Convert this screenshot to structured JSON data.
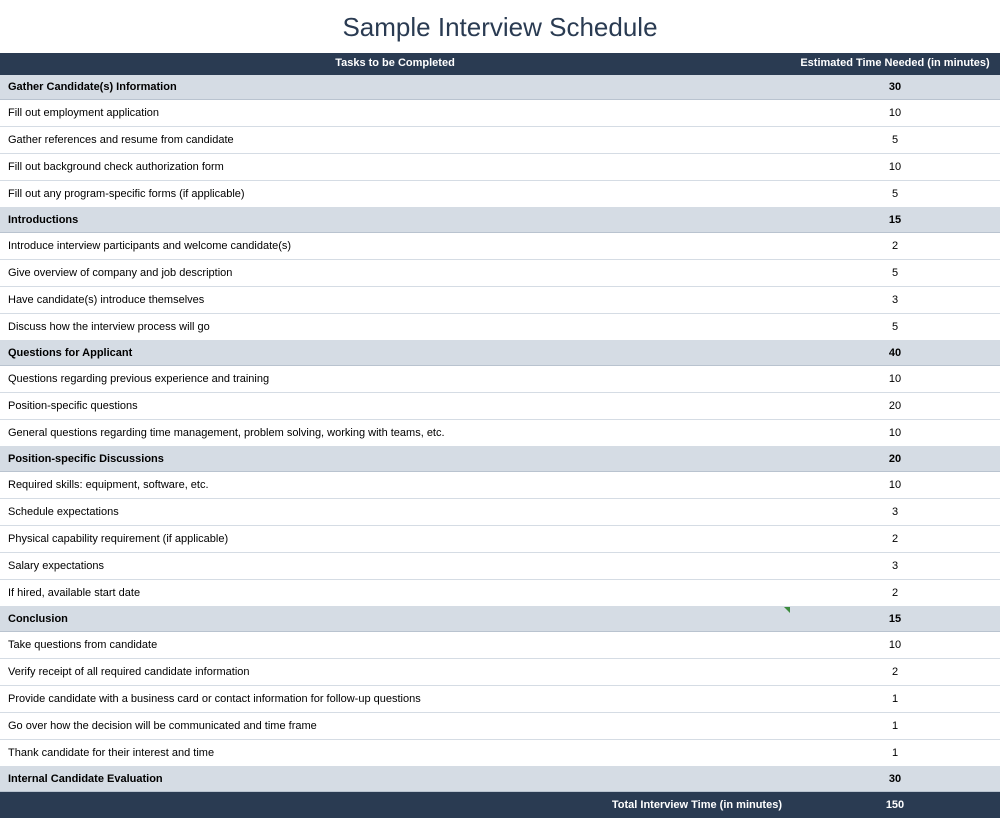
{
  "title": "Sample Interview Schedule",
  "headers": {
    "tasks": "Tasks to be Completed",
    "time": "Estimated Time Needed\n(in minutes)"
  },
  "colors": {
    "header_bg": "#2a3b52",
    "header_text": "#ffffff",
    "section_bg": "#d5dce4",
    "row_border": "#d5dce4",
    "title_color": "#2a3b52"
  },
  "sections": [
    {
      "label": "Gather Candidate(s) Information",
      "total": "30",
      "items": [
        {
          "label": "Fill out employment application",
          "time": "10"
        },
        {
          "label": "Gather references and resume from candidate",
          "time": "5"
        },
        {
          "label": "Fill out background check authorization form",
          "time": "10"
        },
        {
          "label": "Fill out any program-specific forms (if applicable)",
          "time": "5"
        }
      ]
    },
    {
      "label": "Introductions",
      "total": "15",
      "items": [
        {
          "label": "Introduce interview participants and welcome candidate(s)",
          "time": "2"
        },
        {
          "label": "Give overview of company and job description",
          "time": "5"
        },
        {
          "label": "Have candidate(s) introduce themselves",
          "time": "3"
        },
        {
          "label": "Discuss how the interview process will go",
          "time": "5"
        }
      ]
    },
    {
      "label": "Questions for Applicant",
      "total": "40",
      "items": [
        {
          "label": "Questions regarding previous experience and training",
          "time": "10"
        },
        {
          "label": "Position-specific questions",
          "time": "20"
        },
        {
          "label": "General questions regarding time management, problem solving, working with teams, etc.",
          "time": "10"
        }
      ]
    },
    {
      "label": "Position-specific Discussions",
      "total": "20",
      "items": [
        {
          "label": "Required skills: equipment, software, etc.",
          "time": "10"
        },
        {
          "label": "Schedule expectations",
          "time": "3"
        },
        {
          "label": "Physical capability requirement (if applicable)",
          "time": "2"
        },
        {
          "label": "Salary expectations",
          "time": "3"
        },
        {
          "label": "If hired, available start date",
          "time": "2"
        }
      ]
    },
    {
      "label": "Conclusion",
      "total": "15",
      "mark": true,
      "items": [
        {
          "label": "Take questions from candidate",
          "time": "10"
        },
        {
          "label": "Verify receipt of all required candidate information",
          "time": "2"
        },
        {
          "label": "Provide candidate with a business card or contact information for follow-up questions",
          "time": "1"
        },
        {
          "label": "Go over how the decision will be communicated and time frame",
          "time": "1"
        },
        {
          "label": "Thank candidate for their interest and time",
          "time": "1"
        }
      ]
    },
    {
      "label": "Internal Candidate Evaluation",
      "total": "30",
      "items": []
    }
  ],
  "footer": {
    "label": "Total Interview Time (in minutes)",
    "value": "150"
  }
}
